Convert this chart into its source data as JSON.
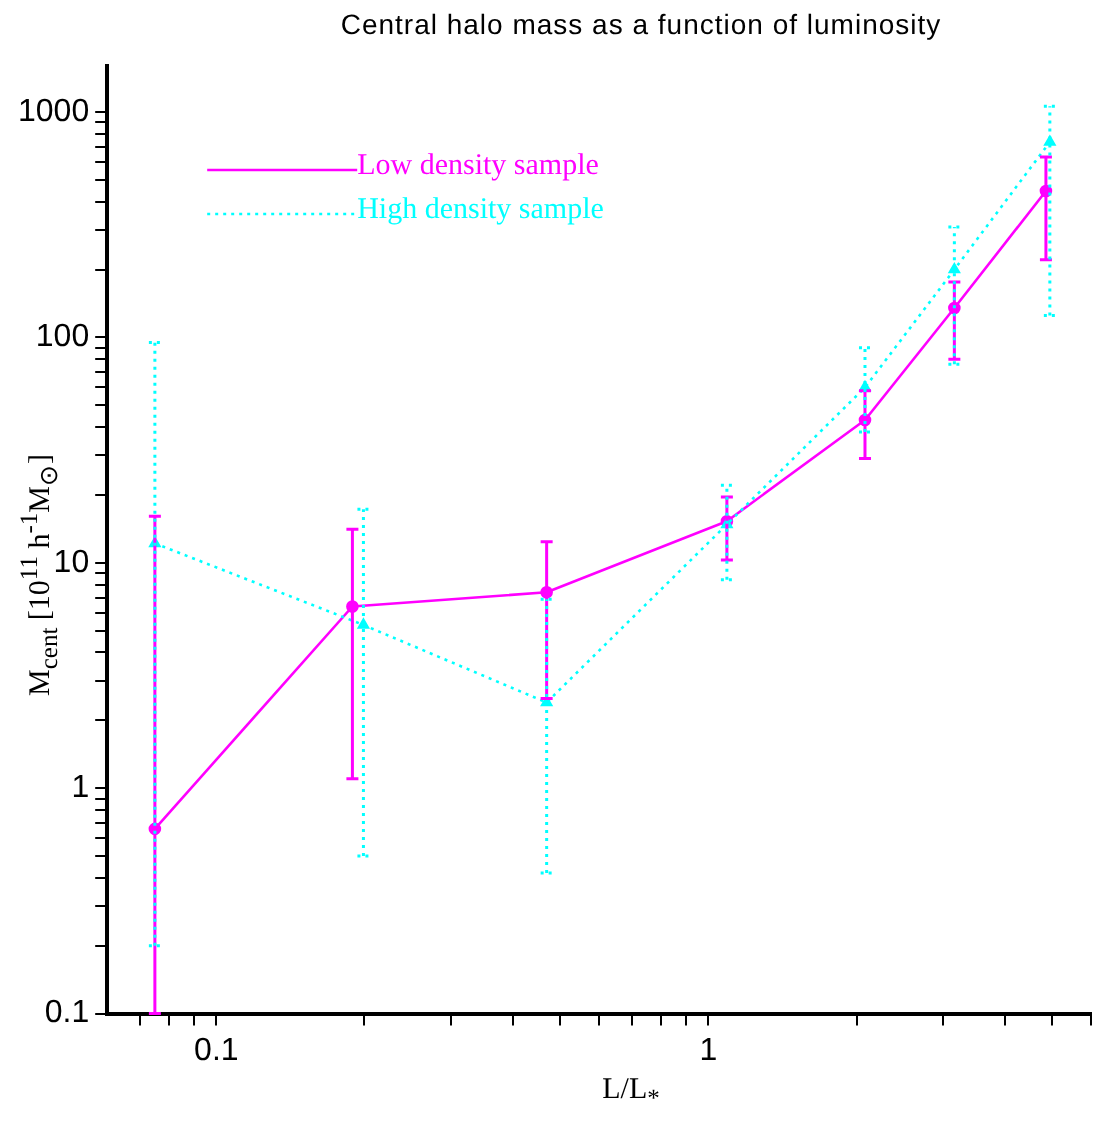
{
  "chart_data": {
    "type": "line",
    "title": "Central halo mass as a function of luminosity",
    "xlabel": "L/L$_{*}$",
    "ylabel": "M$_{cent}$ [10$^{11}$ h$^{-1}$M$_{⊙}$]",
    "log": "xy",
    "grid": false,
    "legend": "top left",
    "xlim": [
      0.06,
      6
    ],
    "ylim": [
      0.1,
      1600
    ],
    "xticks": [
      {
        "value": 0.07,
        "label": null
      },
      {
        "value": 0.08,
        "label": null
      },
      {
        "value": 0.09,
        "label": null
      },
      0.1,
      {
        "value": 0.2,
        "label": null
      },
      {
        "value": 0.3,
        "label": null
      },
      {
        "value": 0.4,
        "label": null
      },
      {
        "value": 0.5,
        "label": null
      },
      {
        "value": 0.6,
        "label": null
      },
      {
        "value": 0.7,
        "label": null
      },
      {
        "value": 0.8,
        "label": null
      },
      {
        "value": 0.9,
        "label": null
      },
      1,
      {
        "value": 2,
        "label": null
      },
      {
        "value": 3,
        "label": null
      },
      {
        "value": 4,
        "label": null
      },
      {
        "value": 5,
        "label": null
      },
      {
        "value": 6,
        "label": null
      }
    ],
    "yticks": [
      0.1,
      {
        "value": 0.2,
        "label": null
      },
      {
        "value": 0.3,
        "label": null
      },
      {
        "value": 0.4,
        "label": null
      },
      {
        "value": 0.5,
        "label": null
      },
      {
        "value": 0.6,
        "label": null
      },
      {
        "value": 0.7,
        "label": null
      },
      {
        "value": 0.8,
        "label": null
      },
      {
        "value": 0.9,
        "label": null
      },
      1,
      {
        "value": 2,
        "label": null
      },
      {
        "value": 3,
        "label": null
      },
      {
        "value": 4,
        "label": null
      },
      {
        "value": 5,
        "label": null
      },
      {
        "value": 6,
        "label": null
      },
      {
        "value": 7,
        "label": null
      },
      {
        "value": 8,
        "label": null
      },
      {
        "value": 9,
        "label": null
      },
      10,
      {
        "value": 20,
        "label": null
      },
      {
        "value": 30,
        "label": null
      },
      {
        "value": 40,
        "label": null
      },
      {
        "value": 50,
        "label": null
      },
      {
        "value": 60,
        "label": null
      },
      {
        "value": 70,
        "label": null
      },
      {
        "value": 80,
        "label": null
      },
      {
        "value": 90,
        "label": null
      },
      100,
      {
        "value": 200,
        "label": null
      },
      {
        "value": 300,
        "label": null
      },
      {
        "value": 400,
        "label": null
      },
      {
        "value": 500,
        "label": null
      },
      {
        "value": 600,
        "label": null
      },
      {
        "value": 700,
        "label": null
      },
      {
        "value": 800,
        "label": null
      },
      {
        "value": 900,
        "label": null
      },
      1000
    ],
    "series": [
      {
        "name": "Low density sample",
        "color": "#ff00ff",
        "marker": "circle",
        "line_style": "solid",
        "x": [
          0.075,
          0.189,
          0.469,
          1.09,
          2.08,
          3.16,
          4.85
        ],
        "values": [
          0.66,
          6.4,
          7.4,
          15.3,
          43,
          135,
          446
        ],
        "errors": [
          [
            0.1,
            16.1
          ],
          [
            1.1,
            14.1
          ],
          [
            2.5,
            12.4
          ],
          [
            10.3,
            19.6
          ],
          [
            29,
            58
          ],
          [
            80,
            176
          ],
          [
            221,
            631
          ]
        ]
      },
      {
        "name": "High density sample",
        "color": "#00ffff",
        "marker": "triangle",
        "line_style": "dotted",
        "x": [
          0.075,
          0.199,
          0.469,
          1.09,
          2.08,
          3.16,
          4.94
        ],
        "values": [
          12.2,
          5.3,
          2.4,
          14.8,
          60,
          200,
          736
        ],
        "errors": [
          [
            0.2,
            95
          ],
          [
            0.5,
            17.3
          ],
          [
            0.42,
            6.9
          ],
          [
            8.4,
            22.1
          ],
          [
            38,
            90
          ],
          [
            76,
            309
          ],
          [
            125,
            1060
          ]
        ]
      }
    ]
  }
}
